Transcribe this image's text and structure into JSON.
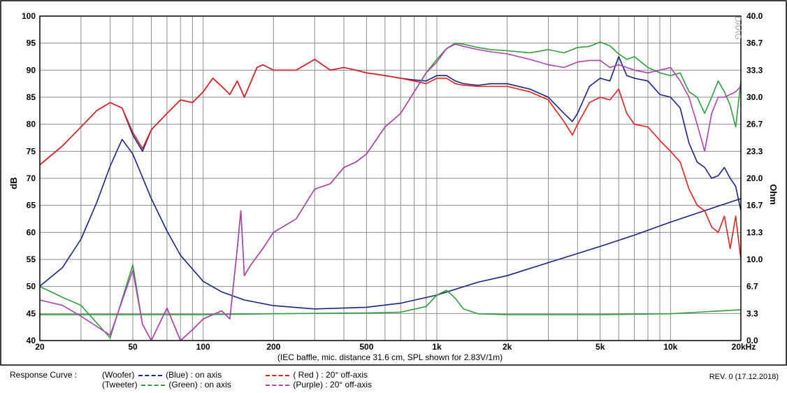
{
  "chart_data": {
    "type": "line",
    "xscale": "log",
    "xlim": [
      20,
      20000
    ],
    "ylim": [
      40,
      100
    ],
    "y2lim": [
      0,
      40
    ],
    "ylabel": "dB",
    "y2label": "Ohm",
    "grid": true,
    "x_ticks": [
      {
        "value": 20,
        "label": "20"
      },
      {
        "value": 50,
        "label": "50"
      },
      {
        "value": 100,
        "label": "100"
      },
      {
        "value": 200,
        "label": "200"
      },
      {
        "value": 500,
        "label": "500"
      },
      {
        "value": 1000,
        "label": "1k"
      },
      {
        "value": 2000,
        "label": "2k"
      },
      {
        "value": 5000,
        "label": "5k"
      },
      {
        "value": 10000,
        "label": "10k"
      },
      {
        "value": 20000,
        "label": "20kHz"
      }
    ],
    "y_ticks": [
      "100",
      "95",
      "90",
      "85",
      "80",
      "75",
      "70",
      "65",
      "60",
      "55",
      "50",
      "45",
      "40"
    ],
    "y2_ticks": [
      "40.0",
      "36.7",
      "33.3",
      "30.0",
      "26.7",
      "23.3",
      "20.0",
      "16.7",
      "13.3",
      "10.0",
      "6.7",
      "3.3",
      "0.0"
    ],
    "caption": "(IEC baffle, mic. distance 31.6 cm, SPL shown for 2.83V/1m)",
    "series": [
      {
        "role": "woofer-impedance",
        "color": "#1a237e",
        "axis": "y2",
        "x": [
          20,
          25,
          30,
          35,
          40,
          45,
          50,
          60,
          70,
          80,
          100,
          120,
          150,
          200,
          300,
          500,
          700,
          1000,
          1500,
          2000,
          3000,
          5000,
          7000,
          10000,
          15000,
          20000
        ],
        "y": [
          6.7,
          9.0,
          12.5,
          17.0,
          21.5,
          24.8,
          23.0,
          17.5,
          13.5,
          10.5,
          7.3,
          6.0,
          5.0,
          4.3,
          3.9,
          4.1,
          4.6,
          5.6,
          7.2,
          8.0,
          9.6,
          11.6,
          13.0,
          14.6,
          16.3,
          17.5
        ]
      },
      {
        "role": "tweeter-impedance",
        "color": "#2e9e3e",
        "axis": "y2",
        "x": [
          20,
          50,
          100,
          200,
          500,
          700,
          900,
          1000,
          1100,
          1200,
          1300,
          1500,
          2000,
          3000,
          5000,
          10000,
          20000
        ],
        "y": [
          3.2,
          3.2,
          3.2,
          3.3,
          3.4,
          3.5,
          4.2,
          5.6,
          6.2,
          5.2,
          3.9,
          3.3,
          3.2,
          3.2,
          3.2,
          3.3,
          3.8
        ]
      },
      {
        "role": "woofer-on-axis",
        "color": "#1a237e",
        "axis": "y",
        "x": [
          20,
          25,
          30,
          35,
          40,
          45,
          50,
          55,
          60,
          70,
          80,
          90,
          100,
          110,
          120,
          130,
          140,
          150,
          170,
          180,
          200,
          250,
          300,
          350,
          400,
          450,
          500,
          600,
          700,
          800,
          900,
          1000,
          1100,
          1200,
          1300,
          1500,
          1700,
          2000,
          2500,
          3000,
          3500,
          3800,
          4000,
          4500,
          5000,
          5500,
          6000,
          6500,
          7000,
          8000,
          9000,
          10000,
          11000,
          12000,
          13000,
          14000,
          15000,
          16000,
          17000,
          18000,
          19000,
          20000
        ],
        "y": [
          72.5,
          76,
          79.5,
          82.5,
          84,
          83,
          78,
          75,
          79,
          82,
          84.5,
          84,
          86,
          88.5,
          87,
          85.5,
          88,
          85,
          90.5,
          91,
          90,
          90,
          92,
          90,
          90.5,
          90,
          89.5,
          89,
          88.5,
          88.2,
          88,
          89,
          89,
          88,
          87.5,
          87.2,
          87.5,
          87.5,
          86.5,
          85,
          82,
          80.5,
          82,
          87,
          88.5,
          88,
          92.5,
          89,
          88.5,
          88,
          85.5,
          85,
          83,
          76.5,
          73,
          72,
          70,
          70.5,
          72,
          70,
          68.5,
          64
        ]
      },
      {
        "role": "woofer-20deg",
        "color": "#e02020",
        "axis": "y",
        "x": [
          20,
          25,
          30,
          35,
          40,
          45,
          50,
          55,
          60,
          70,
          80,
          90,
          100,
          110,
          120,
          130,
          140,
          150,
          170,
          180,
          200,
          250,
          300,
          350,
          400,
          450,
          500,
          600,
          700,
          800,
          900,
          1000,
          1100,
          1200,
          1300,
          1500,
          1700,
          2000,
          2500,
          3000,
          3500,
          3800,
          4000,
          4500,
          5000,
          5500,
          6000,
          6500,
          7000,
          8000,
          9000,
          10000,
          11000,
          12000,
          13000,
          14000,
          15000,
          16000,
          17000,
          18000,
          19000,
          20000
        ],
        "y": [
          72.5,
          76,
          79.5,
          82.5,
          84,
          83,
          78.5,
          75.5,
          79,
          82,
          84.5,
          84,
          86,
          88.5,
          87,
          85.5,
          88,
          85,
          90.5,
          91,
          90,
          90,
          92,
          90,
          90.5,
          90,
          89.5,
          89,
          88.5,
          88,
          87.5,
          88.5,
          88.5,
          87.5,
          87.2,
          87,
          87,
          87,
          86,
          84.5,
          80.5,
          78,
          80,
          84,
          85,
          84.5,
          86.5,
          82,
          80,
          79.5,
          77,
          75,
          73,
          68,
          65,
          64,
          61,
          60,
          63,
          57,
          63,
          55
        ]
      },
      {
        "role": "tweeter-on-axis",
        "color": "#2e9e3e",
        "axis": "y",
        "x": [
          20,
          25,
          30,
          40,
          50,
          55,
          60,
          70,
          80,
          90,
          100,
          120,
          130,
          140,
          145,
          150,
          160,
          180,
          200,
          250,
          300,
          350,
          400,
          450,
          500,
          600,
          700,
          800,
          900,
          1000,
          1100,
          1200,
          1300,
          1500,
          1700,
          2000,
          2500,
          3000,
          3500,
          4000,
          4500,
          5000,
          5500,
          6000,
          6500,
          7000,
          8000,
          9000,
          10000,
          11000,
          12000,
          13000,
          14000,
          15000,
          16000,
          17000,
          18000,
          19000,
          20000
        ],
        "y": [
          50,
          48,
          46.5,
          40.5,
          54,
          43,
          40,
          46,
          40,
          42,
          44,
          45.5,
          44,
          57,
          64,
          52,
          54,
          57,
          60,
          62.5,
          68,
          69,
          72,
          73,
          74.5,
          79.5,
          82,
          86,
          89.5,
          92,
          94,
          95,
          94.8,
          94.2,
          93.8,
          93.6,
          93.2,
          93.8,
          93.2,
          94.2,
          94.4,
          95.2,
          94.5,
          93,
          92,
          92.5,
          90.5,
          89.5,
          89,
          89.5,
          86,
          85,
          82,
          85,
          88,
          86,
          83.5,
          79.5,
          88
        ]
      },
      {
        "role": "tweeter-20deg",
        "color": "#b041b0",
        "axis": "y",
        "x": [
          20,
          25,
          30,
          40,
          50,
          55,
          60,
          70,
          80,
          90,
          100,
          120,
          130,
          140,
          145,
          150,
          160,
          180,
          200,
          250,
          300,
          350,
          400,
          450,
          500,
          600,
          700,
          800,
          900,
          1000,
          1100,
          1200,
          1300,
          1500,
          1700,
          2000,
          2500,
          3000,
          3500,
          4000,
          4500,
          5000,
          5500,
          6000,
          6500,
          7000,
          8000,
          9000,
          10000,
          11000,
          12000,
          13000,
          14000,
          15000,
          16000,
          17000,
          18000,
          19000,
          20000
        ],
        "y": [
          47.5,
          46.5,
          44.5,
          41,
          53,
          43,
          40,
          46,
          40,
          42,
          44,
          45.5,
          44,
          57,
          64,
          52,
          54,
          57,
          60,
          62.5,
          68,
          69,
          72,
          73,
          74.5,
          79.5,
          82,
          86,
          89.5,
          91.5,
          94,
          94.8,
          94.4,
          93.8,
          93.4,
          93,
          92,
          91,
          90.5,
          91.5,
          91.8,
          91.8,
          90.5,
          91,
          90.5,
          90,
          89.5,
          90,
          90.5,
          88,
          85,
          80,
          75,
          82,
          85,
          85,
          85.5,
          86,
          87
        ]
      }
    ]
  },
  "legend": {
    "title": "Response Curve :",
    "rows": [
      {
        "driver": "(Woofer)",
        "a_name": "(Blue)",
        "a_text": ": on axis",
        "a_color": "#1a237e",
        "b_name": "( Red )",
        "b_text": ": 20° off-axis",
        "b_color": "#e02020"
      },
      {
        "driver": "(Tweeter)",
        "a_name": "(Green)",
        "a_text": ": on axis",
        "a_color": "#2e9e3e",
        "b_name": "(Purple)",
        "b_text": ": 20° off-axis",
        "b_color": "#b041b0"
      }
    ]
  },
  "revision": "REV. 0 (17.12.2018)",
  "watermark": "DAAG"
}
